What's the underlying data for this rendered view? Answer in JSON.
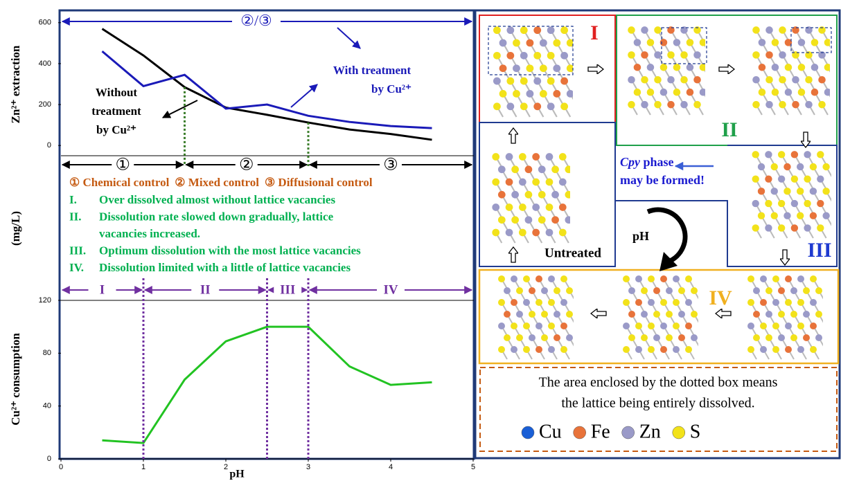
{
  "chart_data": [
    {
      "type": "line",
      "ylabel": "Zn²⁺ extraction",
      "x": [
        0.5,
        1,
        1.5,
        2,
        2.5,
        3,
        3.5,
        4,
        4.5
      ],
      "xlim": [
        0,
        5
      ],
      "ylim": [
        -50,
        660
      ],
      "yticks": [
        0,
        200,
        400,
        600
      ],
      "series": [
        {
          "name": [
            "Without",
            "treatment",
            "by Cu²⁺"
          ],
          "color": "#000000",
          "values": [
            570,
            440,
            285,
            185,
            150,
            112,
            78,
            56,
            28
          ]
        },
        {
          "name": [
            "With treatment",
            "by Cu²⁺"
          ],
          "color": "#1a1ab8",
          "values": [
            460,
            290,
            345,
            180,
            200,
            145,
            115,
            95,
            85
          ]
        }
      ],
      "top_label": "②/③",
      "regions": {
        "bounds": [
          1.5,
          3
        ],
        "labels": [
          "①",
          "②",
          "③"
        ],
        "color": "#3a7d2a"
      }
    },
    {
      "type": "line",
      "ylabel": "Cu²⁺ consumption",
      "xlabel": "pH",
      "x": [
        0.5,
        1,
        1.5,
        2,
        2.5,
        3,
        3.5,
        4,
        4.5
      ],
      "xlim": [
        0,
        5
      ],
      "xticks": [
        0,
        1,
        2,
        3,
        4,
        5
      ],
      "ylim": [
        0,
        120
      ],
      "yticks": [
        0,
        40,
        80,
        120
      ],
      "series": [
        {
          "color": "#22c322",
          "values": [
            14,
            12,
            60,
            89,
            100,
            100,
            70,
            56,
            58
          ]
        }
      ],
      "regions": {
        "bounds": [
          1,
          2.5,
          3
        ],
        "labels": [
          "I",
          "II",
          "III",
          "IV"
        ],
        "color": "#7030a0"
      }
    }
  ],
  "figure": {
    "unit_label": "(mg/L)",
    "controls": [
      "① Chemical control",
      "② Mixed control",
      "③ Diffusional control"
    ],
    "stages": [
      {
        "num": "I.",
        "lines": [
          "Over dissolved almost without lattice vacancies"
        ]
      },
      {
        "num": "II.",
        "lines": [
          "Dissolution rate slowed down gradually, lattice",
          "vacancies increased."
        ]
      },
      {
        "num": "III.",
        "lines": [
          "Optimum dissolution with the most lattice vacancies"
        ]
      },
      {
        "num": "IV.",
        "lines": [
          "Dissolution limited with a little of lattice vacancies"
        ]
      }
    ]
  },
  "diagram": {
    "labels": [
      "I",
      "II",
      "III",
      "IV"
    ],
    "untreated": "Untreated",
    "cpy": {
      "word": "Cpy",
      "rest": " phase",
      "line2": "may be formed!"
    },
    "ph": "pH",
    "note": [
      "The area enclosed by the dotted box means",
      "the lattice being entirely dissolved."
    ],
    "elements": [
      {
        "name": "Cu",
        "color": "#1a5fd6"
      },
      {
        "name": "Fe",
        "color": "#e8733a"
      },
      {
        "name": "Zn",
        "color": "#9a9ac8"
      },
      {
        "name": "S",
        "color": "#f2e21a"
      }
    ]
  }
}
